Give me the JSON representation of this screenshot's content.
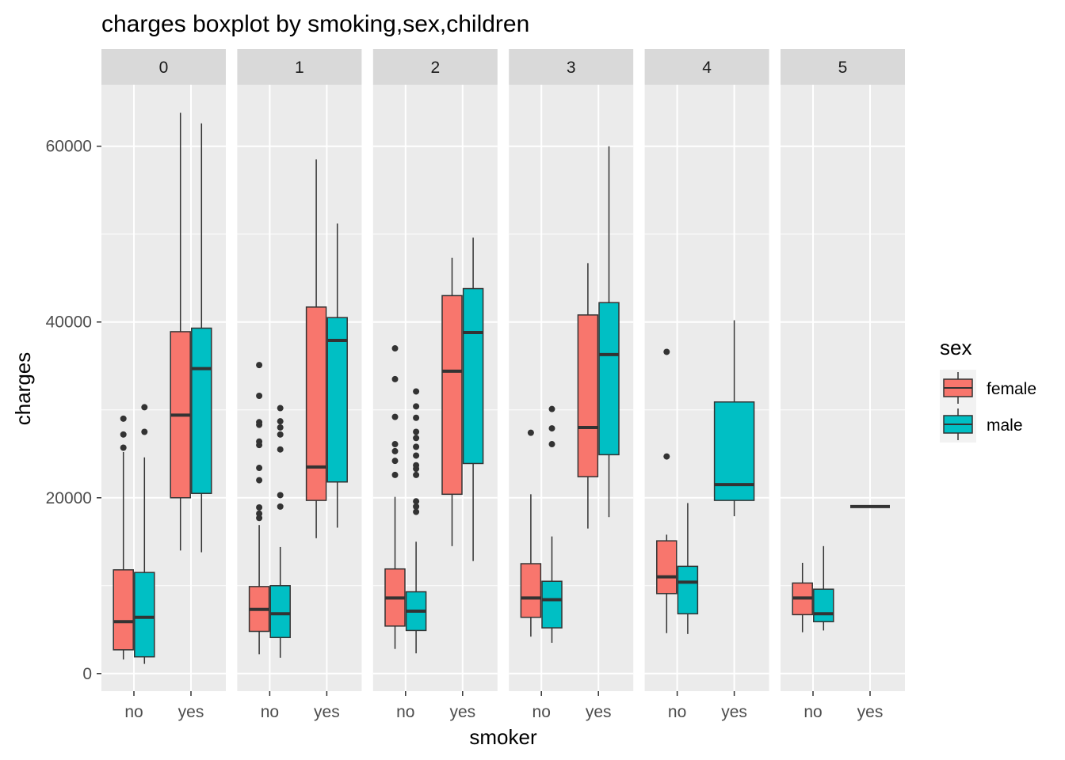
{
  "chart_data": {
    "type": "boxplot",
    "title": "charges boxplot by smoking,sex,children",
    "xlabel": "smoker",
    "ylabel": "charges",
    "ylim": [
      -2000,
      67000
    ],
    "y_ticks": [
      0,
      20000,
      40000,
      60000
    ],
    "y_tick_labels": [
      "0",
      "20000",
      "40000",
      "60000"
    ],
    "x_categories": [
      "no",
      "yes"
    ],
    "facet_variable": "children",
    "facets": [
      "0",
      "1",
      "2",
      "3",
      "4",
      "5"
    ],
    "grid": true,
    "legend": {
      "title": "sex",
      "position": "right",
      "entries": [
        {
          "label": "female",
          "color": "#F8766D"
        },
        {
          "label": "male",
          "color": "#00BFC4"
        }
      ]
    },
    "series": [
      {
        "facet": "0",
        "smoker": "no",
        "sex": "female",
        "whisker_low": 1600,
        "q1": 2700,
        "median": 5900,
        "q3": 11800,
        "whisker_high": 25200,
        "outliers": [
          25700,
          27200,
          29000
        ]
      },
      {
        "facet": "0",
        "smoker": "no",
        "sex": "male",
        "whisker_low": 1100,
        "q1": 1900,
        "median": 6400,
        "q3": 11500,
        "whisker_high": 24600,
        "outliers": [
          27500,
          30300
        ]
      },
      {
        "facet": "0",
        "smoker": "yes",
        "sex": "female",
        "whisker_low": 14000,
        "q1": 20000,
        "median": 29400,
        "q3": 38900,
        "whisker_high": 63800,
        "outliers": []
      },
      {
        "facet": "0",
        "smoker": "yes",
        "sex": "male",
        "whisker_low": 13800,
        "q1": 20500,
        "median": 34700,
        "q3": 39300,
        "whisker_high": 62600,
        "outliers": []
      },
      {
        "facet": "1",
        "smoker": "no",
        "sex": "female",
        "whisker_low": 2200,
        "q1": 4800,
        "median": 7300,
        "q3": 9900,
        "whisker_high": 16900,
        "outliers": [
          17700,
          18200,
          18900,
          22000,
          23400,
          26000,
          26400,
          28300,
          28600,
          31600,
          35100
        ]
      },
      {
        "facet": "1",
        "smoker": "no",
        "sex": "male",
        "whisker_low": 1800,
        "q1": 4100,
        "median": 6800,
        "q3": 10000,
        "whisker_high": 14400,
        "outliers": [
          19000,
          20300,
          25500,
          27200,
          28000,
          28700,
          30200
        ]
      },
      {
        "facet": "1",
        "smoker": "yes",
        "sex": "female",
        "whisker_low": 15400,
        "q1": 19700,
        "median": 23500,
        "q3": 41700,
        "whisker_high": 58500,
        "outliers": []
      },
      {
        "facet": "1",
        "smoker": "yes",
        "sex": "male",
        "whisker_low": 16600,
        "q1": 21800,
        "median": 37900,
        "q3": 40500,
        "whisker_high": 51200,
        "outliers": []
      },
      {
        "facet": "2",
        "smoker": "no",
        "sex": "female",
        "whisker_low": 2800,
        "q1": 5400,
        "median": 8600,
        "q3": 11900,
        "whisker_high": 20100,
        "outliers": [
          22600,
          24200,
          25300,
          26100,
          29200,
          33500,
          37000
        ]
      },
      {
        "facet": "2",
        "smoker": "no",
        "sex": "male",
        "whisker_low": 2300,
        "q1": 4900,
        "median": 7100,
        "q3": 9300,
        "whisker_high": 15000,
        "outliers": [
          18400,
          19000,
          19600,
          22600,
          23300,
          23700,
          24800,
          25800,
          26800,
          27500,
          29100,
          30400,
          32100
        ]
      },
      {
        "facet": "2",
        "smoker": "yes",
        "sex": "female",
        "whisker_low": 14500,
        "q1": 20400,
        "median": 34400,
        "q3": 43000,
        "whisker_high": 47300,
        "outliers": []
      },
      {
        "facet": "2",
        "smoker": "yes",
        "sex": "male",
        "whisker_low": 12800,
        "q1": 23900,
        "median": 38800,
        "q3": 43800,
        "whisker_high": 49600,
        "outliers": []
      },
      {
        "facet": "3",
        "smoker": "no",
        "sex": "female",
        "whisker_low": 4200,
        "q1": 6400,
        "median": 8600,
        "q3": 12500,
        "whisker_high": 20400,
        "outliers": [
          27400
        ]
      },
      {
        "facet": "3",
        "smoker": "no",
        "sex": "male",
        "whisker_low": 3500,
        "q1": 5200,
        "median": 8400,
        "q3": 10500,
        "whisker_high": 15600,
        "outliers": [
          26100,
          27900,
          30100
        ]
      },
      {
        "facet": "3",
        "smoker": "yes",
        "sex": "female",
        "whisker_low": 16500,
        "q1": 22400,
        "median": 28000,
        "q3": 40800,
        "whisker_high": 46700,
        "outliers": []
      },
      {
        "facet": "3",
        "smoker": "yes",
        "sex": "male",
        "whisker_low": 17800,
        "q1": 24900,
        "median": 36300,
        "q3": 42200,
        "whisker_high": 60000,
        "outliers": []
      },
      {
        "facet": "4",
        "smoker": "no",
        "sex": "female",
        "whisker_low": 4600,
        "q1": 9100,
        "median": 11000,
        "q3": 15100,
        "whisker_high": 15800,
        "outliers": [
          24700,
          36600
        ]
      },
      {
        "facet": "4",
        "smoker": "no",
        "sex": "male",
        "whisker_low": 4500,
        "q1": 6800,
        "median": 10400,
        "q3": 12200,
        "whisker_high": 19400,
        "outliers": []
      },
      {
        "facet": "4",
        "smoker": "yes",
        "sex": "male",
        "whisker_low": 17900,
        "q1": 19700,
        "median": 21500,
        "q3": 30900,
        "whisker_high": 40200,
        "outliers": []
      },
      {
        "facet": "5",
        "smoker": "no",
        "sex": "female",
        "whisker_low": 4700,
        "q1": 6700,
        "median": 8600,
        "q3": 10300,
        "whisker_high": 12600,
        "outliers": []
      },
      {
        "facet": "5",
        "smoker": "no",
        "sex": "male",
        "whisker_low": 4900,
        "q1": 5900,
        "median": 6800,
        "q3": 9600,
        "whisker_high": 14500,
        "outliers": []
      },
      {
        "facet": "5",
        "smoker": "yes",
        "sex": "male",
        "whisker_low": 19000,
        "q1": 19000,
        "median": 19000,
        "q3": 19000,
        "whisker_high": 19000,
        "outliers": []
      }
    ]
  }
}
